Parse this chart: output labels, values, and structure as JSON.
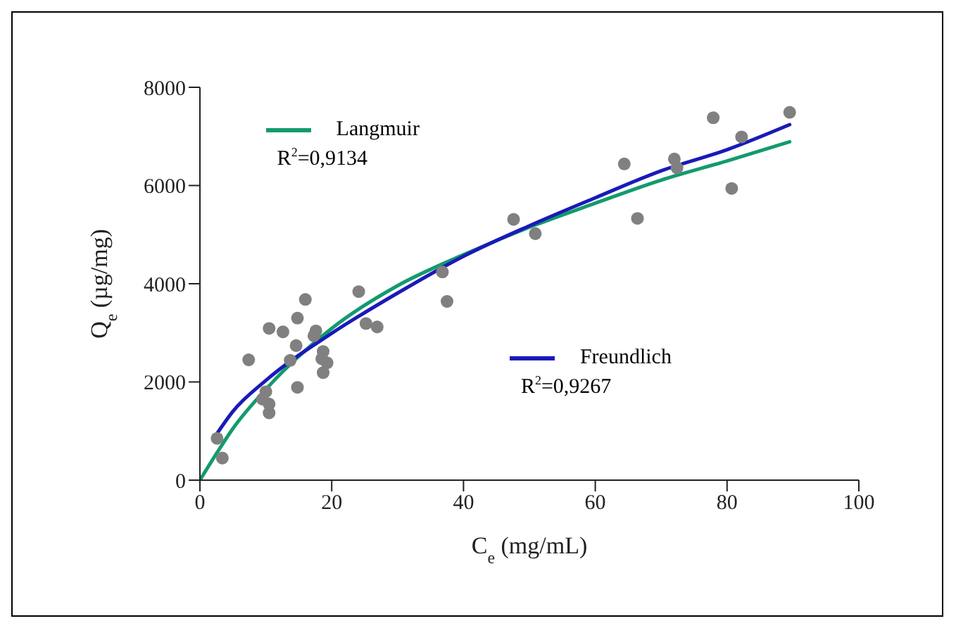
{
  "chart_data": {
    "type": "scatter",
    "xlabel": "C$_{e}$ (mg/mL)",
    "ylabel": "Q$_{e}$ (µg/mg)",
    "xlim": [
      0,
      100
    ],
    "xticks": [
      0,
      20,
      40,
      60,
      80,
      100
    ],
    "ylim": [
      0,
      8000
    ],
    "yticks": [
      0,
      2000,
      4000,
      6000,
      8000
    ],
    "legend": "top left",
    "series": [
      {
        "marker": "circle",
        "color": "#808080",
        "x": [
          2.6,
          3.4,
          7.4,
          9.5,
          10,
          10.5,
          10.5,
          10.5,
          12.6,
          13.7,
          14.6,
          14.8,
          14.8,
          16,
          17.3,
          17.6,
          18.5,
          18.7,
          18.7,
          19.3,
          24.1,
          25.2,
          26.9,
          36.8,
          37.5,
          47.6,
          50.9,
          64.4,
          66.4,
          72,
          72.4,
          77.9,
          80.7,
          82.2,
          89.5
        ],
        "values": [
          850,
          450,
          2450,
          1650,
          1800,
          1550,
          1370,
          3090,
          3020,
          2440,
          2740,
          3300,
          1890,
          3680,
          2940,
          3040,
          2470,
          2620,
          2190,
          2390,
          3840,
          3190,
          3120,
          4240,
          3640,
          5310,
          5020,
          6440,
          5330,
          6540,
          6360,
          7380,
          5940,
          6990,
          7490
        ]
      },
      {
        "type": "line",
        "name": "Langmuir",
        "marker": "none",
        "color": "#139a6e",
        "x": [
          0,
          2.6,
          5,
          10,
          20,
          30,
          40,
          50,
          60,
          70,
          80,
          89.5
        ],
        "values": [
          0,
          560,
          1050,
          1850,
          3090,
          3960,
          4590,
          5150,
          5640,
          6110,
          6500,
          6890
        ]
      },
      {
        "type": "line",
        "name": "Freundlich",
        "marker": "none",
        "color": "#1a1ab8",
        "x": [
          2.6,
          5,
          10,
          20,
          30,
          40,
          50,
          60,
          70,
          80,
          89.5
        ],
        "values": [
          950,
          1400,
          2030,
          2990,
          3810,
          4560,
          5180,
          5750,
          6300,
          6730,
          7240
        ]
      }
    ],
    "annotations": [
      "R$^{2}$=0,9134",
      "R$^{2}$=0,9267"
    ]
  }
}
